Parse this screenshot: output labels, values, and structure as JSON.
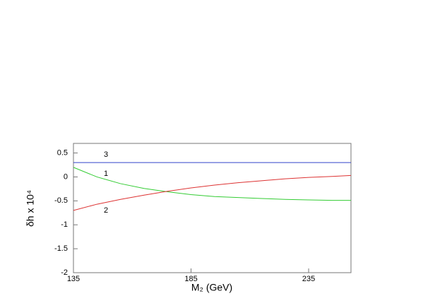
{
  "chart_data": {
    "type": "line",
    "x_label": "M₂ (GeV)",
    "y_label": "δh x 10⁴",
    "x": [
      135,
      145,
      155,
      165,
      175,
      185,
      195,
      205,
      215,
      225,
      235,
      245,
      253
    ],
    "series": [
      {
        "name": "1",
        "color": "#33cc33",
        "values": [
          0.2,
          0.0,
          -0.14,
          -0.24,
          -0.31,
          -0.37,
          -0.41,
          -0.43,
          -0.45,
          -0.47,
          -0.48,
          -0.49,
          -0.49
        ]
      },
      {
        "name": "2",
        "color": "#dd3333",
        "values": [
          -0.7,
          -0.57,
          -0.47,
          -0.38,
          -0.3,
          -0.23,
          -0.17,
          -0.12,
          -0.08,
          -0.04,
          -0.01,
          0.01,
          0.03
        ]
      },
      {
        "name": "3",
        "color": "#3344cc",
        "values": [
          0.3,
          0.3,
          0.3,
          0.3,
          0.3,
          0.3,
          0.3,
          0.3,
          0.3,
          0.3,
          0.3,
          0.3,
          0.3
        ]
      }
    ],
    "xlim": [
      135,
      253
    ],
    "xticks": [
      135,
      185,
      235
    ],
    "ylim": [
      -2,
      0.7
    ],
    "yticks": [
      -2,
      -1.5,
      -1,
      -0.5,
      0,
      0.5
    ]
  }
}
